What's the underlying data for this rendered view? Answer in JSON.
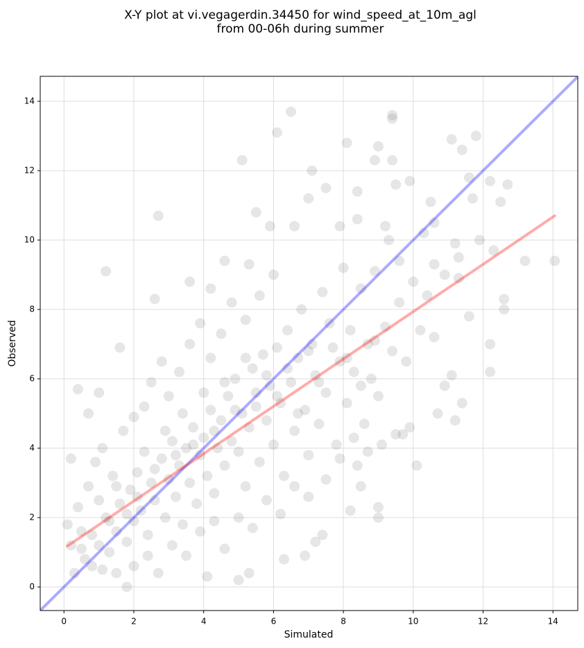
{
  "chart_data": {
    "type": "scatter",
    "title": [
      "X-Y plot at vi.vegagerdin.34450 for wind_speed_at_10m_agl",
      "from 00-06h during summer"
    ],
    "xlabel": "Simulated",
    "ylabel": "Observed",
    "xlim": [
      -0.68,
      14.71
    ],
    "ylim": [
      -0.68,
      14.72
    ],
    "xticks": [
      0,
      2,
      4,
      6,
      8,
      10,
      12,
      14
    ],
    "yticks": [
      0,
      2,
      4,
      6,
      8,
      10,
      12,
      14
    ],
    "grid": true,
    "color": "#333333",
    "x": [
      1.2,
      2.7,
      5.1,
      6.1,
      6.5,
      8.1,
      9.4,
      9.4,
      9.0,
      11.8,
      11.1,
      11.4,
      9.4,
      7.1,
      8.9,
      9.9,
      11.6,
      12.2,
      12.7,
      12.5,
      10.5,
      11.7,
      9.5,
      7.5,
      8.4,
      13.2,
      14.05,
      12.6,
      12.6,
      12.2,
      12.2,
      11.4,
      11.2,
      10.1,
      9.9,
      10.7,
      11.1,
      10.9,
      9.7,
      9.5,
      9.0,
      9.0,
      8.5,
      8.4,
      8.2,
      7.4,
      7.2,
      6.9,
      6.3,
      5.0,
      5.3,
      4.1,
      1.8,
      0.1,
      0.2,
      0.4,
      0.7,
      1.0,
      1.6,
      2.6,
      3.6,
      4.2,
      4.6,
      5.3,
      5.9,
      6.6,
      5.5,
      7.0,
      7.9,
      8.4,
      9.2,
      9.3,
      10.3,
      10.6,
      11.9,
      11.2,
      12.3,
      11.3,
      10.6,
      9.6,
      0.3,
      0.5,
      0.6,
      0.8,
      1.0,
      1.1,
      1.2,
      1.3,
      1.5,
      1.6,
      1.8,
      1.9,
      2.0,
      2.1,
      2.2,
      2.4,
      2.5,
      2.6,
      2.8,
      2.9,
      3.0,
      3.1,
      3.2,
      3.3,
      3.4,
      3.5,
      3.6,
      3.7,
      3.8,
      3.9,
      4.0,
      4.1,
      4.2,
      4.3,
      4.4,
      4.5,
      4.6,
      4.7,
      4.8,
      4.9,
      5.0,
      5.1,
      5.2,
      5.3,
      5.4,
      5.5,
      5.6,
      5.7,
      5.8,
      5.9,
      6.0,
      6.1,
      6.2,
      6.3,
      6.4,
      6.5,
      6.6,
      6.7,
      6.8,
      6.9,
      7.0,
      7.1,
      7.2,
      7.3,
      7.4,
      7.5,
      7.6,
      7.8,
      7.9,
      8.0,
      8.1,
      8.2,
      8.3,
      8.5,
      8.6,
      8.7,
      8.8,
      8.9,
      9.0,
      9.2,
      9.4,
      9.6,
      9.8,
      10.0,
      10.2,
      10.4,
      10.6,
      10.9,
      11.3,
      11.6,
      0.4,
      0.7,
      0.9,
      1.1,
      1.4,
      1.7,
      2.0,
      2.3,
      2.5,
      2.8,
      3.0,
      3.3,
      3.6,
      3.9,
      4.2,
      4.5,
      4.8,
      5.2,
      5.6,
      6.0,
      1.5,
      2.0,
      2.4,
      2.7,
      3.1,
      3.5,
      3.9,
      4.3,
      4.6,
      5.0,
      5.4,
      5.8,
      6.2,
      6.6,
      7.0,
      7.5,
      7.9,
      8.3,
      8.7,
      9.1,
      0.2,
      0.5,
      0.8,
      1.0,
      1.3,
      1.5,
      1.8,
      2.1,
      2.3,
      2.6,
      2.9,
      3.2,
      3.4,
      3.7,
      4.0,
      4.3,
      4.6,
      4.9,
      5.2,
      5.5,
      5.8,
      6.1,
      6.4,
      6.7,
      7.0,
      7.3,
      7.7,
      8.1,
      8.5,
      8.9
    ],
    "values": [
      9.1,
      10.7,
      12.3,
      13.1,
      13.7,
      12.8,
      13.6,
      13.5,
      12.7,
      13.0,
      12.9,
      12.6,
      12.3,
      12.0,
      12.3,
      11.7,
      11.8,
      11.7,
      11.6,
      11.1,
      11.1,
      11.2,
      11.6,
      11.5,
      11.4,
      9.4,
      9.4,
      8.3,
      8.0,
      7.0,
      6.2,
      5.3,
      4.8,
      3.5,
      4.6,
      5.0,
      6.1,
      5.8,
      4.4,
      4.4,
      2.3,
      2.0,
      2.9,
      3.5,
      2.2,
      1.5,
      1.3,
      0.9,
      0.8,
      0.2,
      0.4,
      0.3,
      0.0,
      1.8,
      3.7,
      5.7,
      5.0,
      5.6,
      6.9,
      8.3,
      8.8,
      8.6,
      9.4,
      9.3,
      10.4,
      10.4,
      10.8,
      11.2,
      10.4,
      10.6,
      10.4,
      10.0,
      10.2,
      10.5,
      10.0,
      9.9,
      9.7,
      9.5,
      9.3,
      9.4,
      0.4,
      1.1,
      0.8,
      1.5,
      1.2,
      0.5,
      2.0,
      1.0,
      1.6,
      2.4,
      1.3,
      2.8,
      1.9,
      3.3,
      2.2,
      1.5,
      3.0,
      2.5,
      3.7,
      2.0,
      3.1,
      4.2,
      2.6,
      3.5,
      1.8,
      4.0,
      3.0,
      4.6,
      2.4,
      3.8,
      4.3,
      3.2,
      5.1,
      2.7,
      4.0,
      4.8,
      3.5,
      5.5,
      4.2,
      6.0,
      3.9,
      5.0,
      2.9,
      4.6,
      6.3,
      5.2,
      3.6,
      6.7,
      4.8,
      5.8,
      4.1,
      6.9,
      5.3,
      3.2,
      7.4,
      5.9,
      4.5,
      6.6,
      8.0,
      5.1,
      3.8,
      7.0,
      6.1,
      4.7,
      8.5,
      5.6,
      7.6,
      4.1,
      6.5,
      9.2,
      5.3,
      7.4,
      6.2,
      8.6,
      4.7,
      7.0,
      6.0,
      9.1,
      5.5,
      7.5,
      6.8,
      8.2,
      6.5,
      8.8,
      7.4,
      8.4,
      7.2,
      9.0,
      8.9,
      7.8,
      2.3,
      2.9,
      3.6,
      4.0,
      3.2,
      4.5,
      4.9,
      5.2,
      5.9,
      6.5,
      5.5,
      6.2,
      7.0,
      7.6,
      6.6,
      7.3,
      8.2,
      7.7,
      8.4,
      9.0,
      0.4,
      0.6,
      0.9,
      0.4,
      1.2,
      0.9,
      1.6,
      1.9,
      1.1,
      2.0,
      1.7,
      2.5,
      2.1,
      2.9,
      2.6,
      3.1,
      3.7,
      4.3,
      3.9,
      4.1,
      1.2,
      1.6,
      0.6,
      2.5,
      1.9,
      2.9,
      2.1,
      2.6,
      3.9,
      3.4,
      4.5,
      3.8,
      5.0,
      4.1,
      5.6,
      4.5,
      5.9,
      5.1,
      6.6,
      5.6,
      6.1,
      5.5,
      6.3,
      5.0,
      6.8,
      5.9,
      6.9,
      6.6,
      5.8,
      7.1
    ],
    "lines": [
      {
        "color": "#0000ff",
        "x": [
          -0.68,
          14.72
        ],
        "y": [
          -0.68,
          14.72
        ]
      },
      {
        "color": "#ff0000",
        "x": [
          0.1,
          14.05
        ],
        "y": [
          1.18,
          10.7
        ]
      }
    ]
  }
}
